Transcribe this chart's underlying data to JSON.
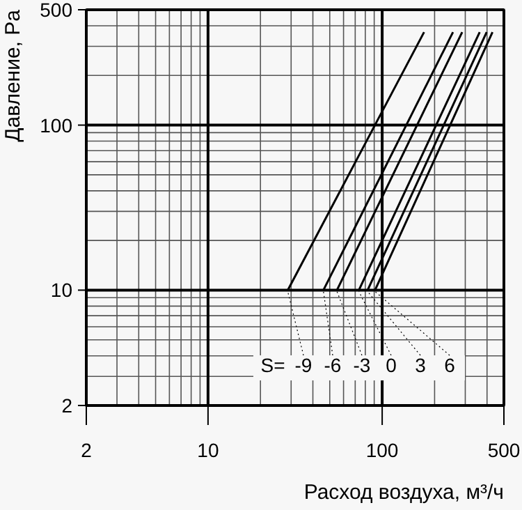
{
  "chart_data": {
    "type": "line",
    "xlabel": "Расход воздуха, м³/ч",
    "ylabel": "Давление, Pa",
    "legend_title": "S=",
    "log": "xy",
    "grid": true,
    "legend": "bottom",
    "line_style": "solid",
    "xlim": [
      2,
      500
    ],
    "ylim": [
      2,
      500
    ],
    "xticks": [
      2,
      10,
      100,
      500
    ],
    "yticks": [
      2,
      10,
      100,
      500
    ],
    "series": [
      {
        "name": "-9",
        "color": "#000000",
        "x": [
          28.7,
          174
        ],
        "values": [
          10,
          366
        ]
      },
      {
        "name": "-6",
        "color": "#000000",
        "x": [
          46,
          255
        ],
        "values": [
          10,
          366
        ]
      },
      {
        "name": "-3",
        "color": "#000000",
        "x": [
          55,
          288
        ],
        "values": [
          10,
          366
        ]
      },
      {
        "name": "0",
        "color": "#000000",
        "x": [
          73.5,
          363
        ],
        "values": [
          10,
          366
        ]
      },
      {
        "name": "3",
        "color": "#000000",
        "x": [
          82.5,
          398
        ],
        "values": [
          10,
          366
        ]
      },
      {
        "name": "6",
        "color": "#000000",
        "x": [
          91,
          430
        ],
        "values": [
          10,
          366
        ]
      }
    ]
  }
}
